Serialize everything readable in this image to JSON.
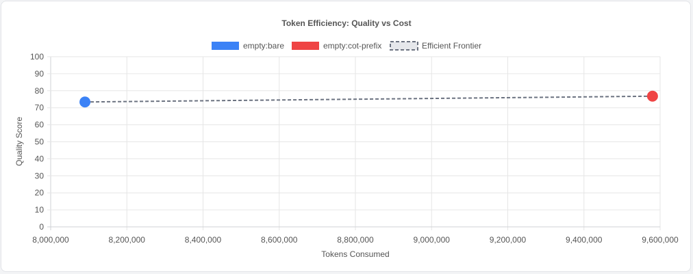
{
  "chart_data": {
    "type": "scatter",
    "title": "Token Efficiency: Quality vs Cost",
    "xlabel": "Tokens Consumed",
    "ylabel": "Quality Score",
    "xlim": [
      8000000,
      9600000
    ],
    "ylim": [
      0,
      100
    ],
    "x_ticks": [
      "8,000,000",
      "8,200,000",
      "8,400,000",
      "8,600,000",
      "8,800,000",
      "9,000,000",
      "9,200,000",
      "9,400,000",
      "9,600,000"
    ],
    "y_ticks": [
      "0",
      "10",
      "20",
      "30",
      "40",
      "50",
      "60",
      "70",
      "80",
      "90",
      "100"
    ],
    "grid": true,
    "legend_position": "top-center",
    "series": [
      {
        "name": "empty:bare",
        "color": "#3b82f6",
        "points": [
          {
            "x": 8090000,
            "y": 73.4
          }
        ]
      },
      {
        "name": "empty:cot-prefix",
        "color": "#ef4444",
        "points": [
          {
            "x": 9580000,
            "y": 76.8
          }
        ]
      }
    ],
    "frontier": {
      "name": "Efficient Frontier",
      "color": "#6b7280",
      "points": [
        {
          "x": 8090000,
          "y": 73.4
        },
        {
          "x": 9580000,
          "y": 76.8
        }
      ]
    }
  }
}
